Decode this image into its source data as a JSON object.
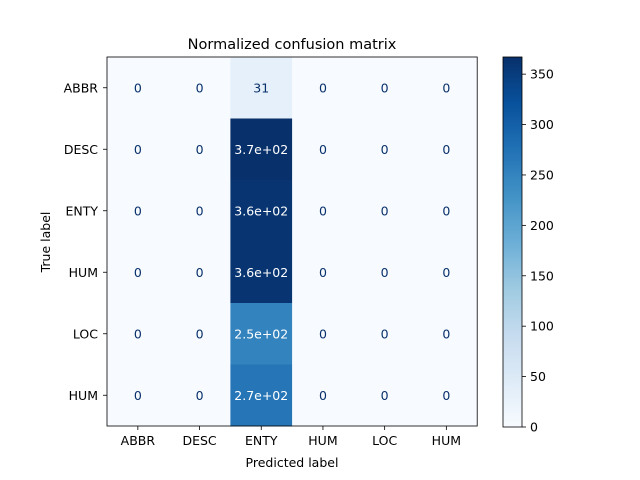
{
  "chart_data": {
    "type": "heatmap",
    "title": "Normalized confusion matrix",
    "xlabel": "Predicted label",
    "ylabel": "True label",
    "x_categories": [
      "ABBR",
      "DESC",
      "ENTY",
      "HUM",
      "LOC",
      "HUM"
    ],
    "y_categories": [
      "ABBR",
      "DESC",
      "ENTY",
      "HUM",
      "LOC",
      "HUM"
    ],
    "values": [
      [
        0,
        0,
        31,
        0,
        0,
        0
      ],
      [
        0,
        0,
        370,
        0,
        0,
        0
      ],
      [
        0,
        0,
        360,
        0,
        0,
        0
      ],
      [
        0,
        0,
        360,
        0,
        0,
        0
      ],
      [
        0,
        0,
        250,
        0,
        0,
        0
      ],
      [
        0,
        0,
        270,
        0,
        0,
        0
      ]
    ],
    "cell_labels": [
      [
        "0",
        "0",
        "31",
        "0",
        "0",
        "0"
      ],
      [
        "0",
        "0",
        "3.7e+02",
        "0",
        "0",
        "0"
      ],
      [
        "0",
        "0",
        "3.6e+02",
        "0",
        "0",
        "0"
      ],
      [
        "0",
        "0",
        "3.6e+02",
        "0",
        "0",
        "0"
      ],
      [
        "0",
        "0",
        "2.5e+02",
        "0",
        "0",
        "0"
      ],
      [
        "0",
        "0",
        "2.7e+02",
        "0",
        "0",
        "0"
      ]
    ],
    "colormap": "Blues",
    "colorbar_range": [
      0,
      367
    ],
    "colorbar_ticks": [
      0,
      50,
      100,
      150,
      200,
      250,
      300,
      350
    ],
    "colors": {
      "light": "#f7fbff",
      "dark": "#08306b",
      "text_light_cell": "#08306b",
      "text_dark_cell": "#ffffff"
    }
  }
}
